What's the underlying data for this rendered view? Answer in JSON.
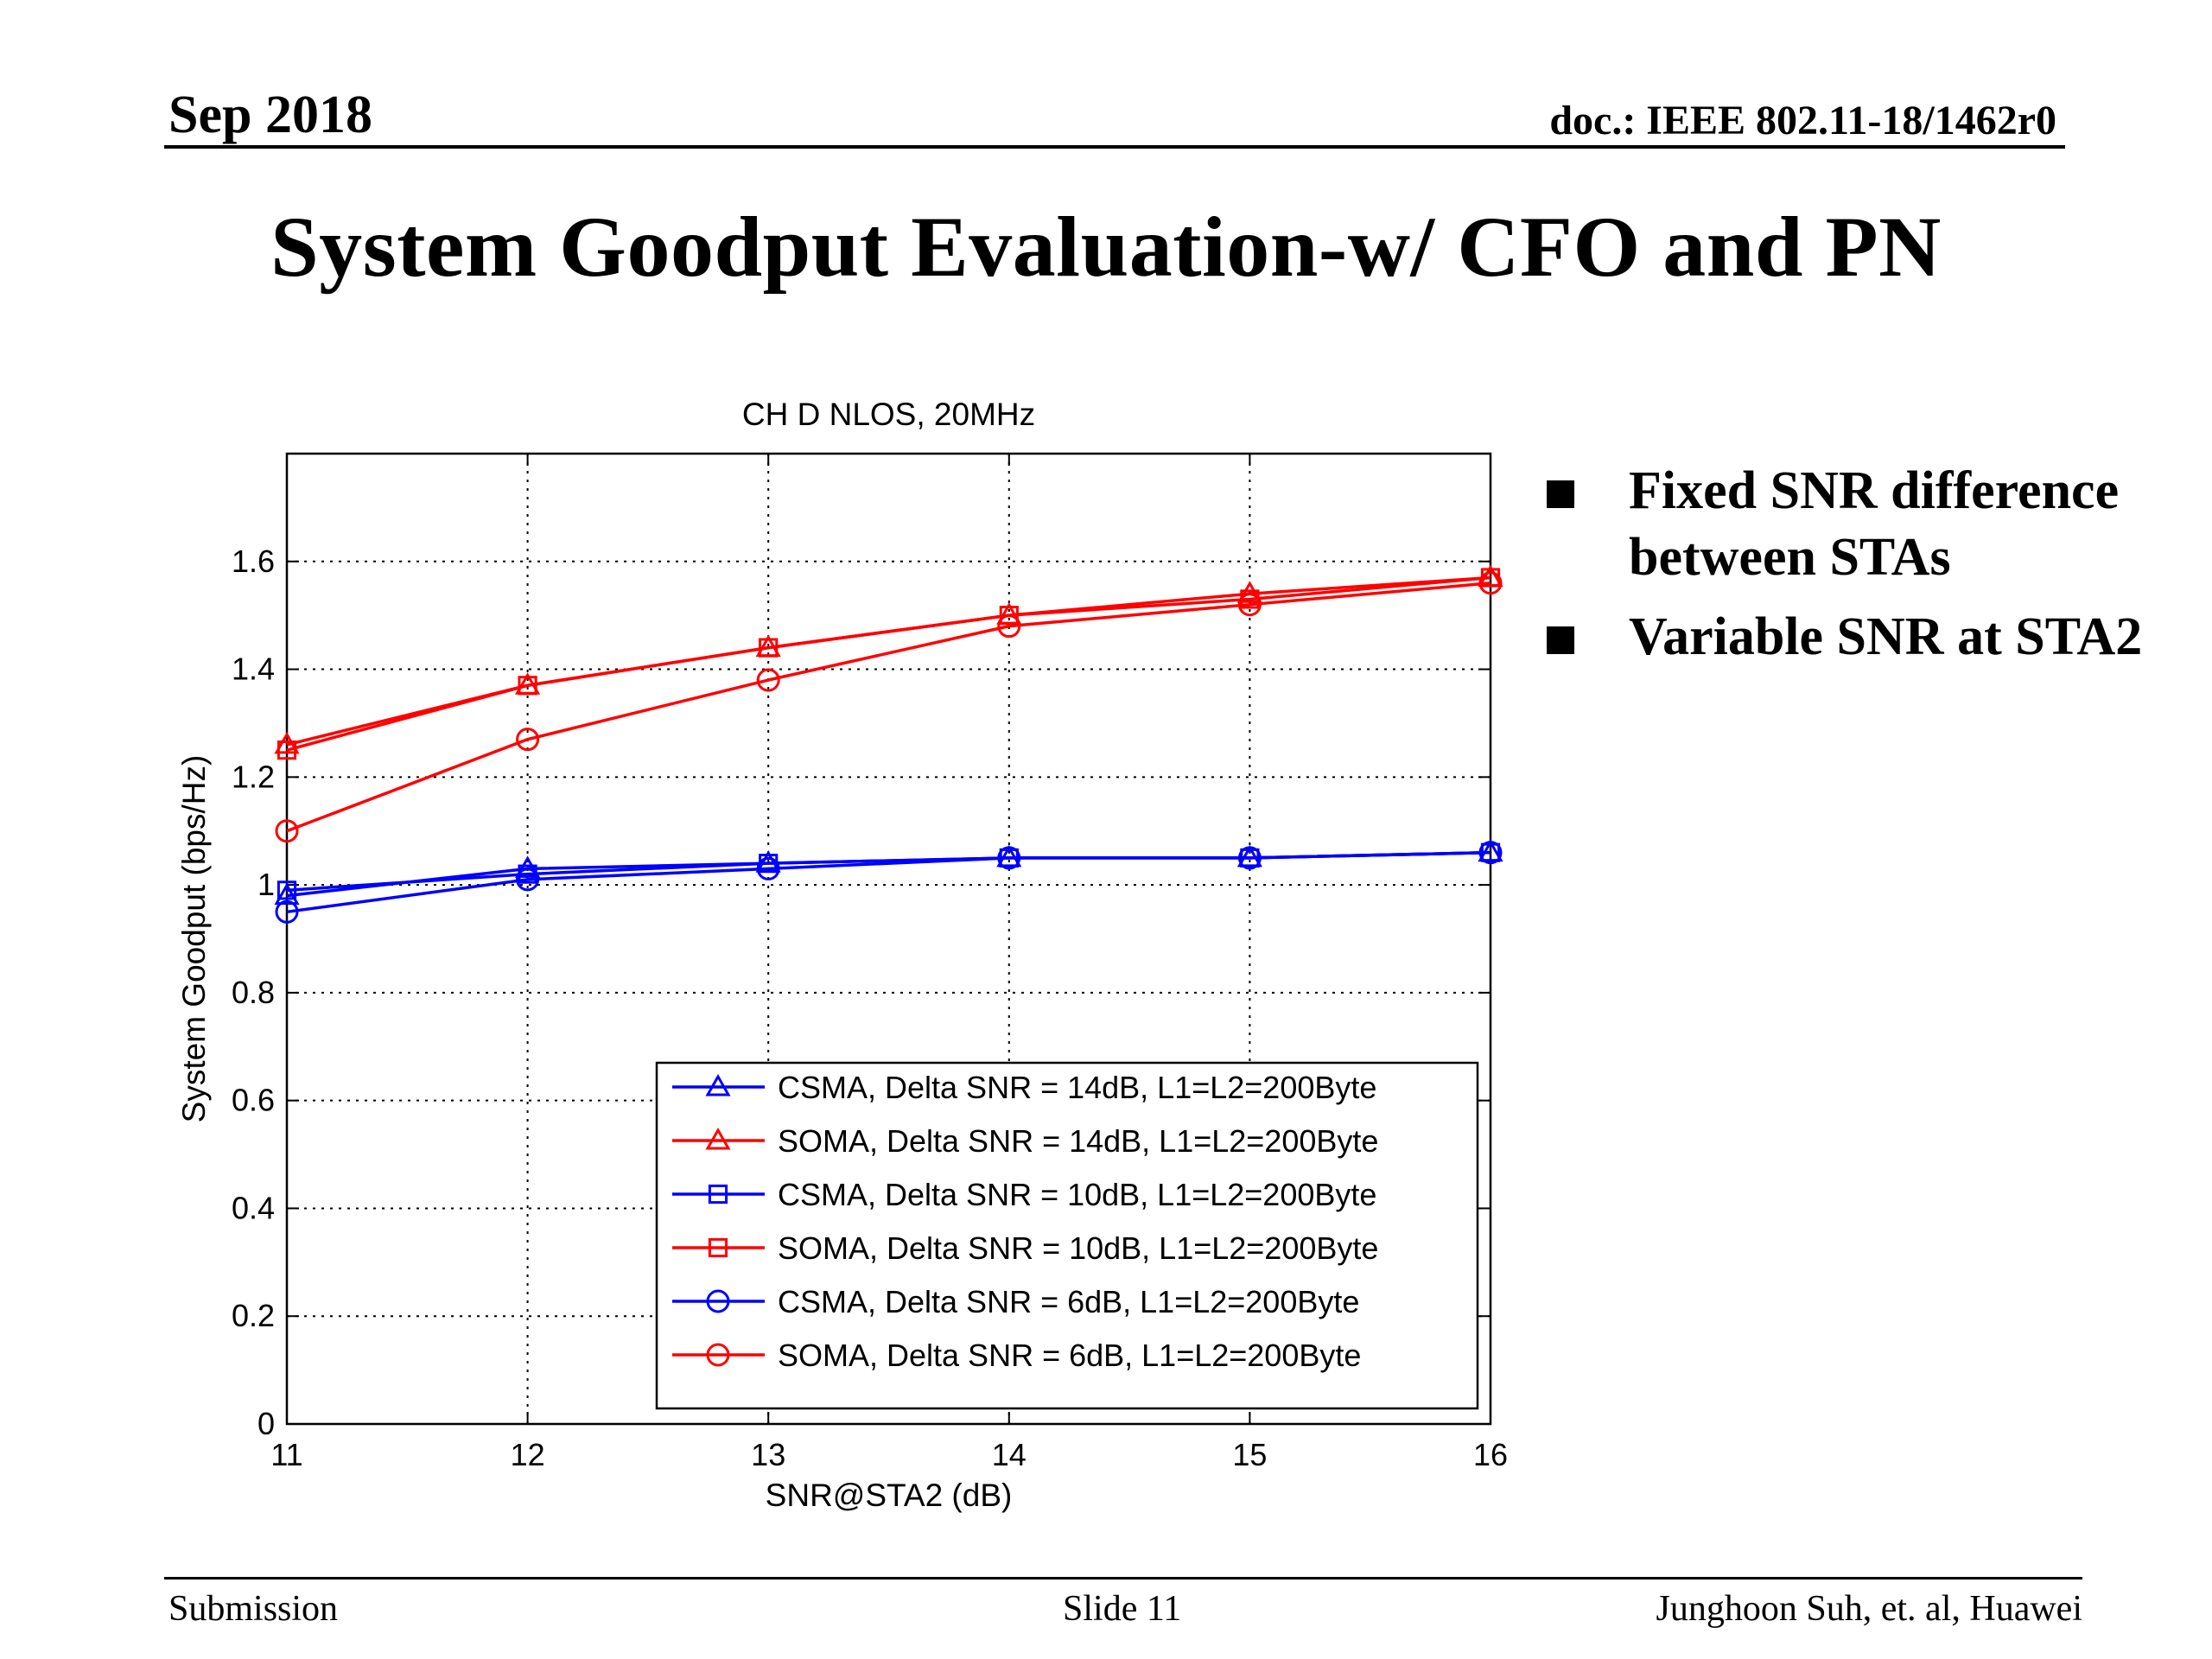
{
  "header": {
    "date": "Sep 2018",
    "doc": "doc.: IEEE 802.11-18/1462r0"
  },
  "slide_title": "System Goodput Evaluation-w/ CFO and PN",
  "bullets": [
    "Fixed SNR difference between STAs",
    "Variable SNR at STA2"
  ],
  "footer": {
    "left": "Submission",
    "center": "Slide 11",
    "right": "Junghoon Suh, et. al, Huawei"
  },
  "chart_data": {
    "type": "line",
    "title": "CH D NLOS, 20MHz",
    "xlabel": "SNR@STA2 (dB)",
    "ylabel": "System Goodput (bps/Hz)",
    "xlim": [
      11,
      16
    ],
    "ylim": [
      0,
      1.8
    ],
    "xticks": [
      11,
      12,
      13,
      14,
      15,
      16
    ],
    "yticks": [
      0,
      0.2,
      0.4,
      0.6,
      0.8,
      1,
      1.2,
      1.4,
      1.6
    ],
    "ytick_labels": [
      "0",
      "0.2",
      "0.4",
      "0.6",
      "0.8",
      "1",
      "1.2",
      "1.4",
      "1.6"
    ],
    "grid": true,
    "legend_position": "lower-right",
    "x": [
      11,
      12,
      13,
      14,
      15,
      16
    ],
    "series": [
      {
        "name": "CSMA, Delta SNR = 14dB, L1=L2=200Byte",
        "color": "#0000ff",
        "marker": "triangle",
        "values": [
          0.98,
          1.03,
          1.04,
          1.05,
          1.05,
          1.06
        ]
      },
      {
        "name": "SOMA, Delta SNR = 14dB, L1=L2=200Byte",
        "color": "#ff0000",
        "marker": "triangle",
        "values": [
          1.26,
          1.37,
          1.44,
          1.5,
          1.54,
          1.57
        ]
      },
      {
        "name": "CSMA, Delta SNR = 10dB, L1=L2=200Byte",
        "color": "#0000ff",
        "marker": "square",
        "values": [
          0.99,
          1.02,
          1.04,
          1.05,
          1.05,
          1.06
        ]
      },
      {
        "name": "SOMA, Delta SNR = 10dB, L1=L2=200Byte",
        "color": "#ff0000",
        "marker": "square",
        "values": [
          1.25,
          1.37,
          1.44,
          1.5,
          1.53,
          1.57
        ]
      },
      {
        "name": "CSMA, Delta SNR = 6dB, L1=L2=200Byte",
        "color": "#0000ff",
        "marker": "circle",
        "values": [
          0.95,
          1.01,
          1.03,
          1.05,
          1.05,
          1.06
        ]
      },
      {
        "name": "SOMA, Delta SNR = 6dB, L1=L2=200Byte",
        "color": "#ff0000",
        "marker": "circle",
        "values": [
          1.1,
          1.27,
          1.38,
          1.48,
          1.52,
          1.56
        ]
      }
    ]
  }
}
